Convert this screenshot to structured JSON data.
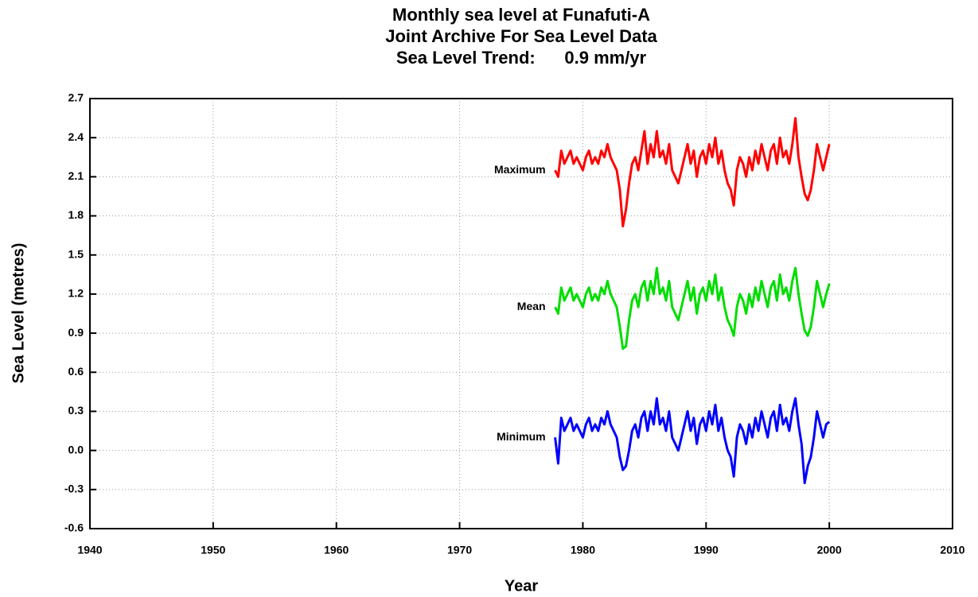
{
  "chart_data": {
    "type": "line",
    "title": "Monthly sea level at Funafuti-A",
    "subtitle": "Joint Archive For Sea Level Data",
    "annotation": "Sea Level Trend:      0.9 mm/yr",
    "x_label": "Year",
    "y_label": "Sea Level (metres)",
    "xlim": [
      1940,
      2010
    ],
    "xticks": [
      1940,
      1950,
      1960,
      1970,
      1980,
      1990,
      2000,
      2010
    ],
    "ylim": [
      -0.6,
      2.7
    ],
    "yticks": [
      -0.6,
      -0.3,
      {
        "value": 0,
        "label": "0.0"
      },
      0.3,
      0.6,
      0.9,
      1.2,
      1.5,
      1.8,
      2.1,
      2.4,
      2.7
    ],
    "grid": true,
    "x": [
      1977.75,
      1978,
      1978.25,
      1978.5,
      1978.75,
      1979,
      1979.25,
      1979.5,
      1979.75,
      1980,
      1980.25,
      1980.5,
      1980.75,
      1981,
      1981.25,
      1981.5,
      1981.75,
      1982,
      1982.25,
      1982.5,
      1982.75,
      1983,
      1983.25,
      1983.5,
      1983.75,
      1984,
      1984.25,
      1984.5,
      1984.75,
      1985,
      1985.25,
      1985.5,
      1985.75,
      1986,
      1986.25,
      1986.5,
      1986.75,
      1987,
      1987.25,
      1987.5,
      1987.75,
      1988,
      1988.25,
      1988.5,
      1988.75,
      1989,
      1989.25,
      1989.5,
      1989.75,
      1990,
      1990.25,
      1990.5,
      1990.75,
      1991,
      1991.25,
      1991.5,
      1991.75,
      1992,
      1992.25,
      1992.5,
      1992.75,
      1993,
      1993.25,
      1993.5,
      1993.75,
      1994,
      1994.25,
      1994.5,
      1994.75,
      1995,
      1995.25,
      1995.5,
      1995.75,
      1996,
      1996.25,
      1996.5,
      1996.75,
      1997,
      1997.25,
      1997.5,
      1997.75,
      1998,
      1998.25,
      1998.5,
      1998.75,
      1999,
      1999.25,
      1999.5,
      1999.75,
      2000
    ],
    "series": [
      {
        "name": "Maximum",
        "color": "#ff0000",
        "values": [
          2.15,
          2.1,
          2.3,
          2.2,
          2.25,
          2.3,
          2.2,
          2.25,
          2.2,
          2.15,
          2.25,
          2.3,
          2.2,
          2.25,
          2.2,
          2.3,
          2.25,
          2.35,
          2.25,
          2.2,
          2.15,
          2.0,
          1.72,
          1.85,
          2.05,
          2.2,
          2.25,
          2.15,
          2.3,
          2.45,
          2.2,
          2.35,
          2.25,
          2.45,
          2.25,
          2.3,
          2.2,
          2.35,
          2.15,
          2.1,
          2.05,
          2.15,
          2.25,
          2.35,
          2.2,
          2.3,
          2.1,
          2.25,
          2.3,
          2.2,
          2.35,
          2.25,
          2.4,
          2.2,
          2.3,
          2.15,
          2.05,
          2.0,
          1.88,
          2.15,
          2.25,
          2.2,
          2.1,
          2.25,
          2.15,
          2.3,
          2.2,
          2.35,
          2.25,
          2.15,
          2.3,
          2.35,
          2.2,
          2.4,
          2.25,
          2.3,
          2.2,
          2.35,
          2.55,
          2.25,
          2.1,
          1.97,
          1.92,
          2.0,
          2.15,
          2.35,
          2.25,
          2.15,
          2.25,
          2.35
        ]
      },
      {
        "name": "Mean",
        "color": "#00dd00",
        "values": [
          1.1,
          1.05,
          1.25,
          1.15,
          1.2,
          1.25,
          1.15,
          1.2,
          1.15,
          1.1,
          1.2,
          1.25,
          1.15,
          1.2,
          1.15,
          1.25,
          1.2,
          1.3,
          1.2,
          1.15,
          1.1,
          0.95,
          0.78,
          0.8,
          1.0,
          1.15,
          1.2,
          1.1,
          1.25,
          1.3,
          1.15,
          1.3,
          1.2,
          1.4,
          1.2,
          1.25,
          1.15,
          1.3,
          1.1,
          1.05,
          1.0,
          1.1,
          1.2,
          1.3,
          1.15,
          1.25,
          1.05,
          1.2,
          1.25,
          1.15,
          1.3,
          1.2,
          1.35,
          1.15,
          1.25,
          1.1,
          1.0,
          0.95,
          0.88,
          1.1,
          1.2,
          1.15,
          1.05,
          1.2,
          1.1,
          1.25,
          1.15,
          1.3,
          1.2,
          1.1,
          1.25,
          1.3,
          1.15,
          1.35,
          1.2,
          1.25,
          1.15,
          1.3,
          1.4,
          1.2,
          1.05,
          0.92,
          0.88,
          0.95,
          1.1,
          1.3,
          1.2,
          1.1,
          1.2,
          1.28
        ]
      },
      {
        "name": "Minimum",
        "color": "#0000ff",
        "values": [
          0.1,
          -0.1,
          0.25,
          0.15,
          0.2,
          0.25,
          0.15,
          0.2,
          0.15,
          0.1,
          0.2,
          0.25,
          0.15,
          0.2,
          0.15,
          0.25,
          0.2,
          0.3,
          0.2,
          0.15,
          0.1,
          -0.05,
          -0.15,
          -0.12,
          0.0,
          0.15,
          0.2,
          0.1,
          0.25,
          0.3,
          0.15,
          0.3,
          0.2,
          0.4,
          0.2,
          0.25,
          0.15,
          0.3,
          0.1,
          0.05,
          0.0,
          0.1,
          0.2,
          0.3,
          0.15,
          0.25,
          0.05,
          0.2,
          0.25,
          0.15,
          0.3,
          0.2,
          0.35,
          0.15,
          0.25,
          0.1,
          0.0,
          -0.05,
          -0.2,
          0.1,
          0.2,
          0.15,
          0.05,
          0.2,
          0.1,
          0.25,
          0.15,
          0.3,
          0.2,
          0.1,
          0.25,
          0.3,
          0.15,
          0.35,
          0.2,
          0.25,
          0.15,
          0.3,
          0.4,
          0.2,
          0.05,
          -0.25,
          -0.12,
          -0.05,
          0.1,
          0.3,
          0.2,
          0.1,
          0.2,
          0.22
        ]
      }
    ]
  }
}
